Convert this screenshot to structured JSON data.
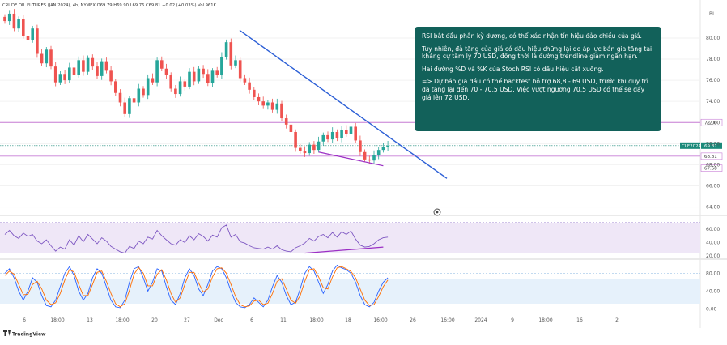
{
  "header": {
    "legend": "CRUDE OIL FUTURES (JAN 2024), 4h, NYMEX  O69.79  H69.90  L69.76  C69.81  +0.02 (+0.03%)  Vol 961K"
  },
  "brand": "TradingView",
  "annotation": {
    "paragraphs": [
      "RSI bắt đầu phân kỳ dương, có thể xác nhận tín hiệu đảo chiều của giá.",
      "Tuy nhiên, đà tăng của giá có dấu hiệu chững lại do áp lực bán gia tăng tại kháng cự tâm lý 70 USD, đồng thời là đường trendline giảm ngắn hạn.",
      "Hai đường %D và %K của Stoch RSI có dấu hiệu cắt xuống.",
      "=> Dự báo giá dầu có thể backtest hỗ trợ 68,8 - 69 USD, trước khi duy trì đà tăng lại đến 70 - 70,5 USD. Việc vượt ngưỡng 70,5 USD có thể sẽ đẩy giá lên 72 USD."
    ]
  },
  "chart_data": [
    {
      "type": "candlestick",
      "title": "CRUDE OIL FUTURES (JAN 2024), 4h",
      "currency": "USD",
      "unit_label": "",
      "ylim": [
        63.2,
        83.6
      ],
      "y_ticks": [
        64.0,
        66.0,
        68.0,
        70.0,
        72.0,
        74.0,
        76.0,
        78.0,
        80.0
      ],
      "x_tick_labels": [
        "6",
        "18:00",
        "13",
        "18:00",
        "20",
        "27",
        "Dec",
        "6",
        "11",
        "18:00",
        "18",
        "16:00",
        "26",
        "16:00",
        "2024",
        "9",
        "18:00",
        "16",
        "2"
      ],
      "close_path": [
        81.6,
        82.3,
        80.9,
        81.8,
        80.2,
        79.8,
        80.9,
        78.5,
        77.6,
        78.9,
        77.3,
        75.8,
        76.6,
        76.0,
        77.2,
        76.5,
        77.9,
        76.8,
        78.1,
        77.3,
        76.4,
        77.8,
        76.9,
        75.9,
        74.8,
        73.9,
        72.8,
        74.3,
        73.9,
        75.2,
        74.6,
        76.2,
        75.8,
        77.9,
        77.1,
        76.5,
        75.2,
        74.7,
        75.9,
        75.4,
        76.8,
        75.9,
        77.1,
        76.6,
        75.7,
        76.9,
        76.5,
        78.2,
        79.6,
        77.4,
        77.9,
        76.2,
        75.8,
        75.1,
        74.4,
        74.0,
        73.6,
        73.9,
        73.2,
        73.8,
        72.4,
        71.8,
        71.1,
        69.6,
        69.3,
        69.1,
        69.9,
        69.4,
        70.2,
        70.8,
        70.4,
        71.1,
        70.5,
        71.3,
        70.9,
        71.6,
        70.3,
        69.2,
        68.5,
        68.4,
        68.9,
        69.4,
        69.7,
        69.81
      ],
      "current_price": 69.81,
      "current_label": "CLF2024",
      "horizontal_levels": [
        {
          "label": "72.00",
          "value": 72.0
        },
        {
          "label": "68.81",
          "value": 68.81
        },
        {
          "label": "67.68",
          "value": 67.68
        }
      ],
      "trendline": {
        "from": [
          0,
          80.5
        ],
        "to": [
          92,
          66.7
        ]
      },
      "bottom_line": {
        "from": [
          68,
          69.2
        ],
        "to": [
          82,
          67.9
        ]
      },
      "annotation_text": "RSI bắt đầu phân kỳ dương, có thể xác nhận tín hiệu đảo chiều của giá.",
      "side_label": "BLL"
    },
    {
      "type": "line",
      "name": "RSI",
      "ylim": [
        15,
        78
      ],
      "y_ticks": [
        20.0,
        40.0,
        60.0
      ],
      "band": [
        30,
        70
      ],
      "values": [
        52,
        58,
        50,
        46,
        54,
        49,
        52,
        42,
        38,
        44,
        35,
        27,
        33,
        30,
        44,
        36,
        50,
        41,
        52,
        45,
        38,
        47,
        42,
        34,
        30,
        26,
        24,
        34,
        31,
        42,
        38,
        48,
        45,
        58,
        50,
        44,
        38,
        36,
        44,
        40,
        50,
        44,
        53,
        49,
        42,
        51,
        48,
        62,
        66,
        48,
        52,
        41,
        39,
        35,
        32,
        31,
        30,
        33,
        30,
        35,
        29,
        27,
        26,
        32,
        35,
        39,
        46,
        42,
        49,
        52,
        47,
        55,
        48,
        56,
        52,
        57,
        45,
        36,
        33,
        34,
        38,
        44,
        47,
        48
      ],
      "divergence": {
        "from": [
          65,
          24
        ],
        "to": [
          82,
          33
        ]
      }
    },
    {
      "type": "line",
      "name": "Stoch RSI",
      "ylim": [
        -8,
        108
      ],
      "y_ticks": [
        0.0,
        40.0,
        80.0
      ],
      "band": [
        20,
        80
      ],
      "k_values": [
        80,
        90,
        70,
        40,
        20,
        40,
        70,
        60,
        30,
        8,
        5,
        20,
        50,
        80,
        95,
        75,
        40,
        20,
        35,
        70,
        90,
        80,
        50,
        20,
        5,
        3,
        20,
        60,
        90,
        95,
        70,
        40,
        60,
        90,
        85,
        50,
        20,
        10,
        35,
        70,
        90,
        75,
        45,
        30,
        55,
        85,
        95,
        90,
        70,
        40,
        15,
        5,
        3,
        10,
        25,
        15,
        5,
        20,
        50,
        75,
        60,
        30,
        10,
        15,
        45,
        80,
        95,
        85,
        60,
        35,
        55,
        85,
        98,
        92,
        88,
        80,
        60,
        30,
        10,
        5,
        15,
        40,
        60,
        70
      ],
      "d_values": [
        75,
        85,
        78,
        55,
        32,
        33,
        55,
        62,
        45,
        20,
        10,
        14,
        35,
        65,
        88,
        83,
        55,
        30,
        30,
        55,
        82,
        85,
        62,
        35,
        12,
        5,
        12,
        42,
        78,
        93,
        80,
        52,
        52,
        78,
        88,
        65,
        35,
        15,
        25,
        55,
        82,
        82,
        58,
        38,
        45,
        72,
        90,
        92,
        80,
        55,
        28,
        10,
        5,
        7,
        18,
        20,
        10,
        13,
        35,
        62,
        68,
        45,
        20,
        13,
        30,
        62,
        88,
        90,
        72,
        48,
        45,
        72,
        92,
        95,
        90,
        84,
        70,
        45,
        20,
        8,
        10,
        28,
        50,
        65
      ]
    }
  ]
}
